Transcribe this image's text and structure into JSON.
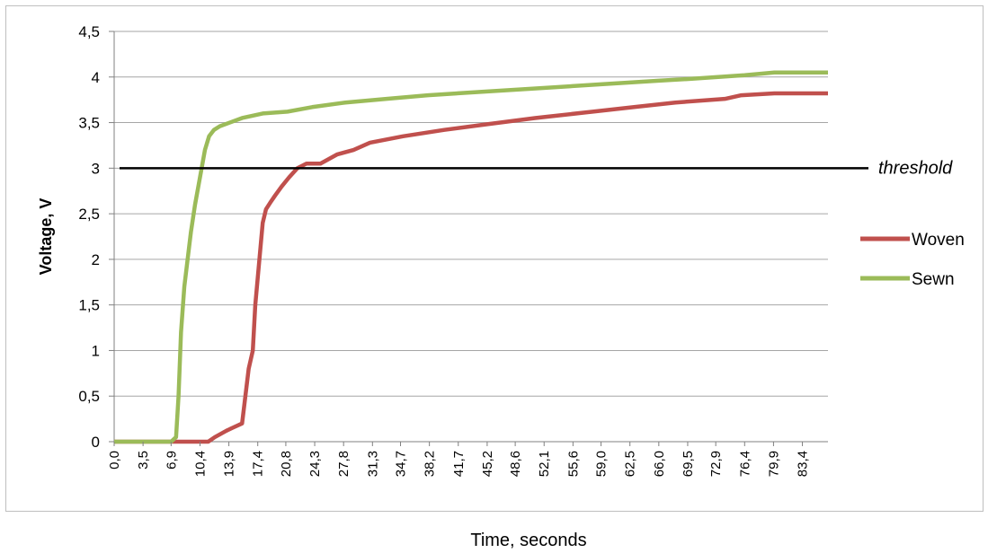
{
  "chart_data": {
    "type": "line",
    "title": "",
    "xlabel": "Time, seconds",
    "ylabel": "Voltage, V",
    "xlim": [
      0,
      86.5
    ],
    "ylim": [
      0,
      4.5
    ],
    "y_ticks": [
      "0",
      "0,5",
      "1",
      "1,5",
      "2",
      "2,5",
      "3",
      "3,5",
      "4",
      "4,5"
    ],
    "x_ticks": [
      "0,0",
      "3,5",
      "6,9",
      "10,4",
      "13,9",
      "17,4",
      "20,8",
      "24,3",
      "27,8",
      "31,3",
      "34,7",
      "38,2",
      "41,7",
      "45,2",
      "48,6",
      "52,1",
      "55,6",
      "59,0",
      "62,5",
      "66,0",
      "69,5",
      "72,9",
      "76,4",
      "79,9",
      "83,4"
    ],
    "grid": true,
    "legend_position": "right",
    "series": [
      {
        "name": "Woven",
        "color": "#c0504d",
        "x": [
          0,
          8.6,
          11.4,
          12.2,
          13.6,
          14.3,
          15.5,
          16.3,
          16.8,
          17.1,
          17.4,
          17.7,
          18.0,
          18.4,
          18.9,
          19.5,
          20.3,
          21.2,
          22.2,
          23.3,
          25.0,
          27.0,
          29.0,
          31.0,
          35.0,
          40.0,
          45.0,
          51.0,
          58.0,
          63.0,
          68.0,
          74.0,
          76.0,
          80.0,
          86.5
        ],
        "y": [
          0,
          0,
          0,
          0.05,
          0.12,
          0.15,
          0.2,
          0.8,
          1.0,
          1.5,
          1.8,
          2.1,
          2.4,
          2.55,
          2.62,
          2.7,
          2.8,
          2.9,
          3.0,
          3.05,
          3.05,
          3.15,
          3.2,
          3.28,
          3.35,
          3.42,
          3.48,
          3.55,
          3.62,
          3.67,
          3.72,
          3.76,
          3.8,
          3.82,
          3.82
        ]
      },
      {
        "name": "Sewn",
        "color": "#9bbb59",
        "x": [
          0,
          6.9,
          7.5,
          7.8,
          8.1,
          8.5,
          8.9,
          9.3,
          9.8,
          10.2,
          10.6,
          11.0,
          11.5,
          12.1,
          12.8,
          14.0,
          15.5,
          18.0,
          21.0,
          24.0,
          28.0,
          33.0,
          38.0,
          45.0,
          52.0,
          59.0,
          66.0,
          70.0,
          76.4,
          80.0,
          86.5
        ],
        "y": [
          0,
          0,
          0.05,
          0.5,
          1.2,
          1.7,
          2.0,
          2.3,
          2.6,
          2.8,
          3.0,
          3.2,
          3.35,
          3.42,
          3.46,
          3.5,
          3.55,
          3.6,
          3.62,
          3.67,
          3.72,
          3.76,
          3.8,
          3.84,
          3.88,
          3.92,
          3.96,
          3.98,
          4.02,
          4.05,
          4.05
        ]
      }
    ],
    "threshold": {
      "label": "threshold",
      "value": 3,
      "color": "#000000"
    }
  }
}
